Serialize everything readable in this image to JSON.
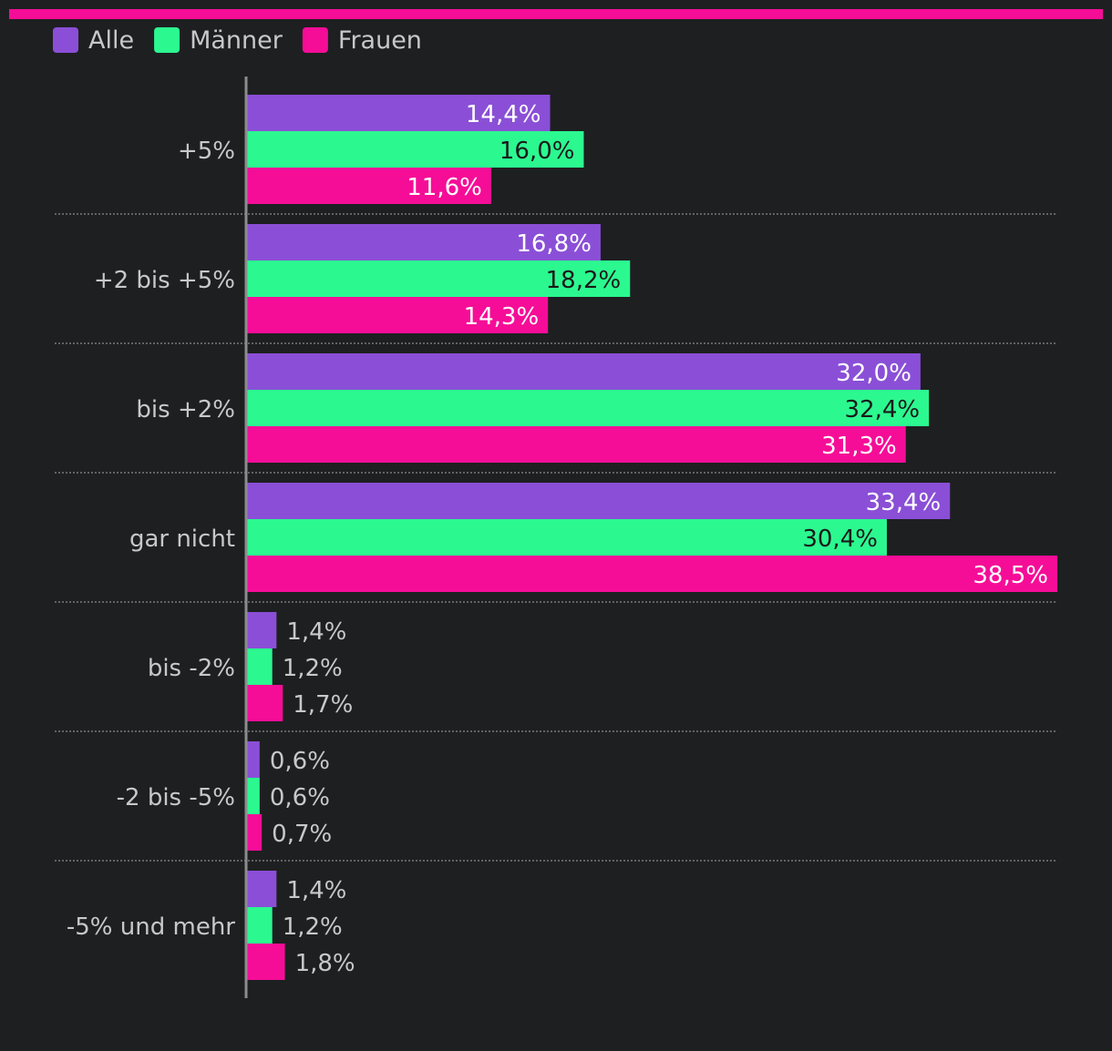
{
  "chart_data": {
    "type": "bar",
    "orientation": "horizontal",
    "title": "",
    "xlabel": "",
    "ylabel": "",
    "xlim": [
      0,
      38.5
    ],
    "grid": false,
    "legend_position": "top-left",
    "categories": [
      "+5%",
      "+2 bis +5%",
      "bis +2%",
      "gar nicht",
      "bis -2%",
      "-2 bis -5%",
      "-5% und mehr"
    ],
    "series": [
      {
        "name": "Alle",
        "color": "#8a4fd6",
        "values": [
          14.4,
          16.8,
          32.0,
          33.4,
          1.4,
          0.6,
          1.4
        ],
        "labels": [
          "14,4%",
          "16,8%",
          "32,0%",
          "33,4%",
          "1,4%",
          "0,6%",
          "1,4%"
        ]
      },
      {
        "name": "Männer",
        "color": "#2cf890",
        "values": [
          16.0,
          18.2,
          32.4,
          30.4,
          1.2,
          0.6,
          1.2
        ],
        "labels": [
          "16,0%",
          "18,2%",
          "32,4%",
          "30,4%",
          "1,2%",
          "0,6%",
          "1,2%"
        ]
      },
      {
        "name": "Frauen",
        "color": "#f50d97",
        "values": [
          11.6,
          14.3,
          31.3,
          38.5,
          1.7,
          0.7,
          1.8
        ],
        "labels": [
          "11,6%",
          "14,3%",
          "31,3%",
          "38,5%",
          "1,7%",
          "0,7%",
          "1,8%"
        ]
      }
    ],
    "accent_bar_color": "#f50d97",
    "axis_color": "#8c8c8c",
    "text_color": "#c8c8c8"
  }
}
